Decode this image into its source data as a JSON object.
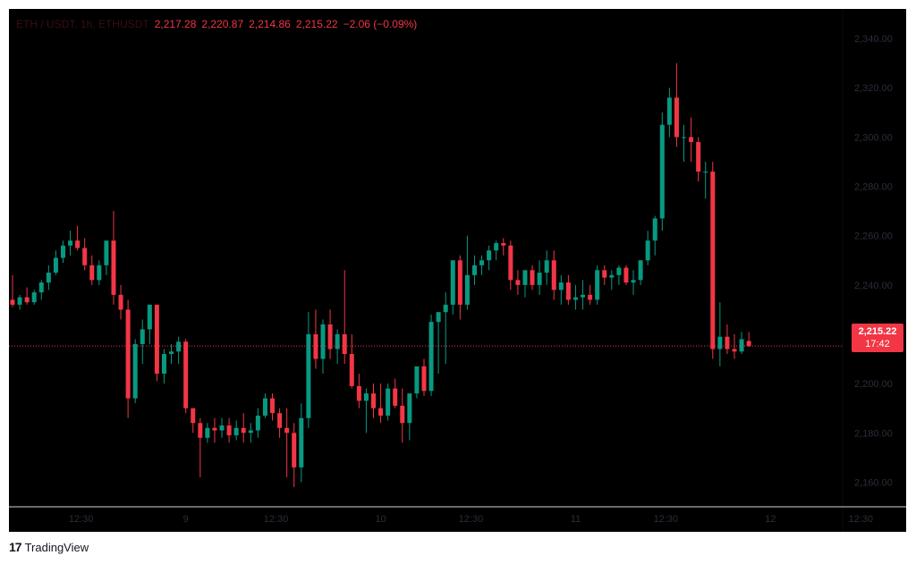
{
  "legend": {
    "symbol": "ETH / USDT, 1h, ETHUSDT",
    "open": "2,217.28",
    "high": "2,220.87",
    "low": "2,214.86",
    "close": "2,215.22",
    "change": "−2.06 (−0.09%)"
  },
  "price_tag": {
    "price": "2,215.22",
    "countdown": "17:42"
  },
  "brand": {
    "logo": "17",
    "name": "TradingView"
  },
  "colors": {
    "up": "#089981",
    "down": "#f23645",
    "background": "#000000",
    "axis_text": "#2a2e39",
    "current_line": "#f23645"
  },
  "chart_data": {
    "type": "candlestick",
    "title": "",
    "ylim": [
      2150,
      2352
    ],
    "y_ticks": [
      2340,
      2320,
      2300,
      2280,
      2260,
      2240,
      2200,
      2180,
      2160
    ],
    "y_tick_labels": [
      "2,340.00",
      "2,320.00",
      "2,300.00",
      "2,280.00",
      "2,260.00",
      "2,240.00",
      "2,200.00",
      "2,180.00",
      "2,160.00"
    ],
    "x_tick_labels": [
      "12:30",
      "9",
      "12:30",
      "10",
      "12:30",
      "11",
      "12:30",
      "12",
      "12:30"
    ],
    "x_tick_index": [
      9.5,
      24,
      36.5,
      51,
      63.5,
      78,
      90.5,
      105,
      117.5
    ],
    "current_price": 2215.22,
    "candles": [
      [
        2234,
        2244,
        2231,
        2232
      ],
      [
        2232,
        2236,
        2230,
        2235
      ],
      [
        2235,
        2239,
        2232,
        2233
      ],
      [
        2233,
        2238,
        2232,
        2237
      ],
      [
        2237,
        2242,
        2234,
        2241
      ],
      [
        2241,
        2248,
        2238,
        2245
      ],
      [
        2245,
        2254,
        2244,
        2251
      ],
      [
        2251,
        2258,
        2249,
        2256
      ],
      [
        2256,
        2262,
        2252,
        2258
      ],
      [
        2258,
        2264,
        2254,
        2255
      ],
      [
        2255,
        2259,
        2246,
        2248
      ],
      [
        2248,
        2252,
        2240,
        2242
      ],
      [
        2242,
        2250,
        2240,
        2248
      ],
      [
        2248,
        2256,
        2244,
        2258
      ],
      [
        2258,
        2270,
        2232,
        2236
      ],
      [
        2236,
        2240,
        2226,
        2230
      ],
      [
        2230,
        2234,
        2186,
        2194
      ],
      [
        2194,
        2218,
        2192,
        2216
      ],
      [
        2216,
        2226,
        2208,
        2222
      ],
      [
        2222,
        2232,
        2216,
        2232
      ],
      [
        2232,
        2232,
        2201,
        2204
      ],
      [
        2204,
        2214,
        2200,
        2212
      ],
      [
        2212,
        2216,
        2208,
        2213
      ],
      [
        2213,
        2219,
        2208,
        2217
      ],
      [
        2217,
        2218,
        2188,
        2190
      ],
      [
        2190,
        2190,
        2180,
        2184
      ],
      [
        2184,
        2186,
        2162,
        2178
      ],
      [
        2178,
        2184,
        2176,
        2182
      ],
      [
        2182,
        2186,
        2176,
        2181
      ],
      [
        2181,
        2186,
        2178,
        2183
      ],
      [
        2183,
        2186,
        2176,
        2179
      ],
      [
        2179,
        2185,
        2177,
        2182
      ],
      [
        2182,
        2188,
        2176,
        2180
      ],
      [
        2180,
        2184,
        2176,
        2181
      ],
      [
        2181,
        2190,
        2178,
        2187
      ],
      [
        2187,
        2196,
        2186,
        2194
      ],
      [
        2194,
        2196,
        2185,
        2188
      ],
      [
        2188,
        2190,
        2178,
        2182
      ],
      [
        2182,
        2190,
        2162,
        2180
      ],
      [
        2180,
        2184,
        2158,
        2166
      ],
      [
        2166,
        2192,
        2160,
        2186
      ],
      [
        2186,
        2229,
        2182,
        2220
      ],
      [
        2220,
        2230,
        2206,
        2210
      ],
      [
        2210,
        2226,
        2204,
        2224
      ],
      [
        2224,
        2230,
        2210,
        2214
      ],
      [
        2214,
        2222,
        2208,
        2220
      ],
      [
        2220,
        2246,
        2208,
        2212
      ],
      [
        2212,
        2220,
        2198,
        2199
      ],
      [
        2199,
        2204,
        2190,
        2193
      ],
      [
        2193,
        2198,
        2180,
        2196
      ],
      [
        2196,
        2200,
        2186,
        2190
      ],
      [
        2190,
        2200,
        2184,
        2187
      ],
      [
        2187,
        2200,
        2185,
        2198
      ],
      [
        2198,
        2202,
        2190,
        2191
      ],
      [
        2191,
        2198,
        2176,
        2184
      ],
      [
        2184,
        2194,
        2177,
        2196
      ],
      [
        2196,
        2205,
        2194,
        2207
      ],
      [
        2207,
        2210,
        2195,
        2197
      ],
      [
        2197,
        2228,
        2195,
        2225
      ],
      [
        2225,
        2228,
        2204,
        2229
      ],
      [
        2229,
        2237,
        2208,
        2232
      ],
      [
        2232,
        2250,
        2228,
        2250
      ],
      [
        2250,
        2252,
        2226,
        2232
      ],
      [
        2232,
        2260,
        2230,
        2244
      ],
      [
        2244,
        2252,
        2240,
        2248
      ],
      [
        2248,
        2252,
        2244,
        2250
      ],
      [
        2250,
        2256,
        2246,
        2254
      ],
      [
        2254,
        2258,
        2250,
        2257
      ],
      [
        2257,
        2259,
        2252,
        2256
      ],
      [
        2256,
        2258,
        2238,
        2242
      ],
      [
        2242,
        2246,
        2236,
        2240
      ],
      [
        2240,
        2244,
        2235,
        2246
      ],
      [
        2246,
        2248,
        2238,
        2240
      ],
      [
        2240,
        2250,
        2236,
        2245
      ],
      [
        2245,
        2254,
        2240,
        2250
      ],
      [
        2250,
        2254,
        2234,
        2238
      ],
      [
        2238,
        2244,
        2232,
        2241
      ],
      [
        2241,
        2244,
        2232,
        2234
      ],
      [
        2234,
        2240,
        2230,
        2235
      ],
      [
        2235,
        2242,
        2230,
        2236
      ],
      [
        2236,
        2240,
        2232,
        2234
      ],
      [
        2234,
        2248,
        2232,
        2246
      ],
      [
        2246,
        2248,
        2240,
        2243
      ],
      [
        2243,
        2246,
        2238,
        2244
      ],
      [
        2244,
        2248,
        2240,
        2247
      ],
      [
        2247,
        2248,
        2240,
        2241
      ],
      [
        2241,
        2246,
        2236,
        2242
      ],
      [
        2242,
        2250,
        2240,
        2250
      ],
      [
        2250,
        2262,
        2248,
        2258
      ],
      [
        2258,
        2268,
        2252,
        2267
      ],
      [
        2267,
        2310,
        2262,
        2305
      ],
      [
        2305,
        2320,
        2300,
        2316
      ],
      [
        2316,
        2330,
        2296,
        2300
      ],
      [
        2300,
        2305,
        2290,
        2300
      ],
      [
        2300,
        2308,
        2290,
        2298
      ],
      [
        2298,
        2300,
        2282,
        2286
      ],
      [
        2286,
        2290,
        2275,
        2286
      ],
      [
        2286,
        2290,
        2210,
        2214
      ],
      [
        2214,
        2233,
        2207,
        2219
      ],
      [
        2219,
        2224,
        2212,
        2214
      ],
      [
        2214,
        2220,
        2210,
        2213
      ],
      [
        2213,
        2221,
        2212,
        2218
      ],
      [
        2217.28,
        2220.87,
        2214.86,
        2215.22
      ]
    ]
  }
}
